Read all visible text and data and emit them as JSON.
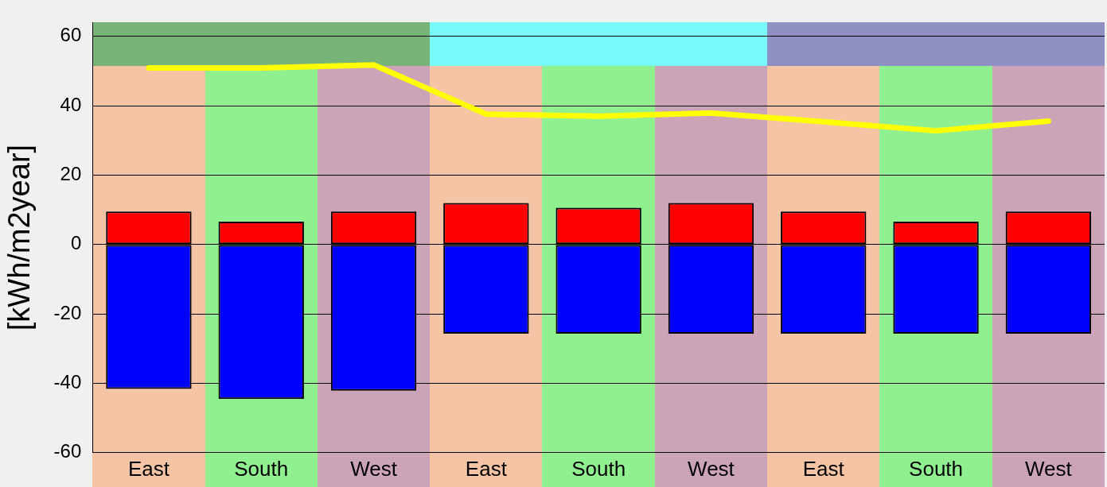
{
  "chart_data": {
    "type": "bar",
    "ylabel": "[kWh/m2year]",
    "categories": [
      "East",
      "South",
      "West",
      "East",
      "South",
      "West",
      "East",
      "South",
      "West"
    ],
    "stacked": true,
    "series": [
      {
        "color": "#ff0000",
        "values": [
          9.5,
          6.6,
          9.5,
          12.0,
          10.6,
          12.0,
          9.5,
          6.6,
          9.5
        ]
      },
      {
        "color": "#0000ff",
        "values": [
          -41.6,
          -44.5,
          -42.1,
          -25.7,
          -25.7,
          -25.7,
          -25.7,
          -25.7,
          -25.7
        ]
      },
      {
        "type": "line",
        "color": "#ffff00",
        "values": [
          50.9,
          50.9,
          51.8,
          37.6,
          37.0,
          37.9,
          35.4,
          32.8,
          35.6
        ]
      }
    ],
    "ylim": [
      -60,
      64
    ],
    "yticks": [
      -60,
      -40,
      -20,
      0,
      20,
      40,
      60
    ],
    "grid": "y",
    "legend": false
  }
}
